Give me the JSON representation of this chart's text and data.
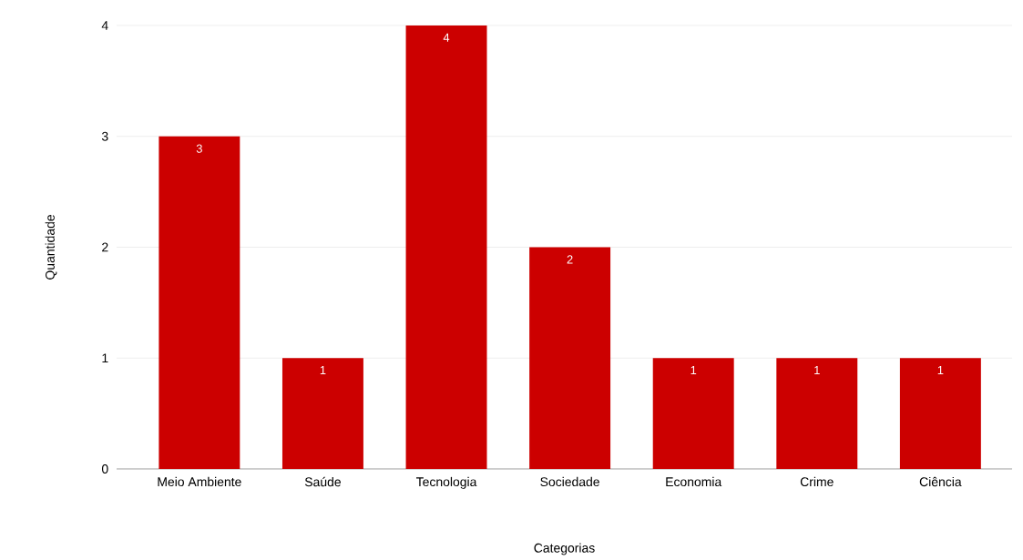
{
  "chart_data": {
    "type": "bar",
    "xlabel": "Categorias",
    "ylabel": "Quantidade",
    "categories": [
      "Meio Ambiente",
      "Saúde",
      "Tecnologia",
      "Sociedade",
      "Economia",
      "Crime",
      "Ciência"
    ],
    "values": [
      3,
      1,
      4,
      2,
      1,
      1,
      1
    ],
    "color": "#cc0000",
    "ylim": [
      0,
      4
    ],
    "yticks": [
      0,
      1,
      2,
      3,
      4
    ],
    "grid": "y",
    "data_labels": true
  }
}
